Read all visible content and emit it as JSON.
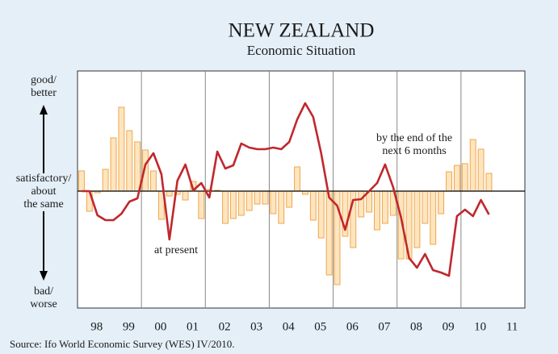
{
  "chart_data": {
    "type": "bar_line",
    "title": "NEW ZEALAND",
    "subtitle": "Economic Situation",
    "source": "Source: Ifo World Economic Survey (WES) IV/2010.",
    "y_labels": {
      "top": [
        "good/",
        "better"
      ],
      "middle": [
        "satisfactory/",
        "about",
        "the same"
      ],
      "bottom": [
        "bad/",
        "worse"
      ]
    },
    "annotations": {
      "present": "at present",
      "expectations": [
        "by the end of the",
        "next 6 months"
      ]
    },
    "xlim": [
      1998,
      2012
    ],
    "xticks": [
      {
        "value": 1998.5,
        "label": "98"
      },
      {
        "value": 1999.5,
        "label": "99"
      },
      {
        "value": 2000.5,
        "label": "00"
      },
      {
        "value": 2001.5,
        "label": "01"
      },
      {
        "value": 2002.5,
        "label": "02"
      },
      {
        "value": 2003.5,
        "label": "03"
      },
      {
        "value": 2004.5,
        "label": "04"
      },
      {
        "value": 2005.5,
        "label": "05"
      },
      {
        "value": 2006.5,
        "label": "06"
      },
      {
        "value": 2007.5,
        "label": "07"
      },
      {
        "value": 2008.5,
        "label": "08"
      },
      {
        "value": 2009.5,
        "label": "09"
      },
      {
        "value": 2010.5,
        "label": "10"
      },
      {
        "value": 2011.5,
        "label": "11"
      }
    ],
    "x_grid": [
      2000,
      2002,
      2004,
      2006,
      2008,
      2010
    ],
    "ylim": [
      -72.5,
      74.5
    ],
    "zero_line": 0,
    "x": [
      1998.125,
      1998.375,
      1998.625,
      1998.875,
      1999.125,
      1999.375,
      1999.625,
      1999.875,
      2000.125,
      2000.375,
      2000.625,
      2000.875,
      2001.125,
      2001.375,
      2001.625,
      2001.875,
      2002.125,
      2002.375,
      2002.625,
      2002.875,
      2003.125,
      2003.375,
      2003.625,
      2003.875,
      2004.125,
      2004.375,
      2004.625,
      2004.875,
      2005.125,
      2005.375,
      2005.625,
      2005.875,
      2006.125,
      2006.375,
      2006.625,
      2006.875,
      2007.125,
      2007.375,
      2007.625,
      2007.875,
      2008.125,
      2008.375,
      2008.625,
      2008.875,
      2009.125,
      2009.375,
      2009.625,
      2009.875,
      2010.125,
      2010.375,
      2010.625,
      2010.875
    ],
    "series": [
      {
        "name": "at present",
        "kind": "bar",
        "color": "#fde5c0",
        "edge": "#f0a74a",
        "values": [
          12.5,
          -12.5,
          -1,
          13.5,
          33,
          52,
          37.5,
          30.5,
          25.5,
          12.5,
          -17.5,
          -3,
          -2,
          -5.5,
          6,
          -17,
          1,
          0.5,
          -20,
          -17,
          -15,
          -12,
          -8,
          -8,
          -14,
          -20,
          -10,
          15,
          -2,
          -18,
          -29,
          -52,
          -58,
          -28,
          -35,
          -16,
          -13,
          -24,
          -20,
          -15,
          -42,
          -42,
          -35,
          -20,
          -33,
          -14,
          12,
          16,
          17,
          32,
          26,
          11
        ]
      },
      {
        "name": "by the end of the next 6 months",
        "kind": "line",
        "color": "#c1272d",
        "values": [
          0,
          0,
          -15,
          -18,
          -18,
          -14,
          -6.5,
          -4.5,
          16.5,
          23.5,
          10.5,
          -30,
          6.5,
          16.5,
          0.5,
          5,
          -4,
          24.5,
          14,
          16,
          29.5,
          27,
          26,
          26,
          27,
          26,
          30.5,
          44.5,
          54.5,
          46,
          23.5,
          -4,
          -9,
          -24,
          -5.5,
          -5,
          0,
          5,
          16.5,
          2.5,
          -16.5,
          -41.5,
          -47.5,
          -39,
          -49,
          -50.5,
          -52.5,
          -15.5,
          -11.5,
          -15.5,
          -5.5,
          -14.5
        ]
      }
    ]
  }
}
